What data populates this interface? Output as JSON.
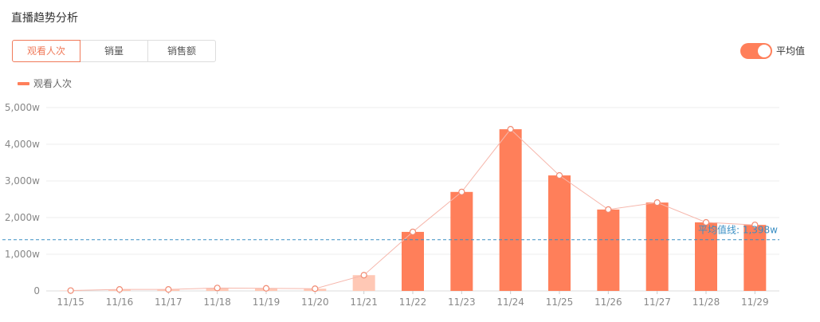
{
  "title": "直播趋势分析",
  "tabs": [
    {
      "label": "观看人次",
      "active": true
    },
    {
      "label": "销量",
      "active": false
    },
    {
      "label": "销售额",
      "active": false
    }
  ],
  "toggle": {
    "label": "平均值",
    "on": true
  },
  "colors": {
    "bar": "#ff7f5a",
    "bar_faded": "#ffc8b5",
    "line": "#f6b7ac",
    "avg_line": "#3a8fc4",
    "accent": "#f07a5a"
  },
  "chart_data": {
    "type": "bar",
    "legend": [
      "观看人次"
    ],
    "legend_position": "top-left",
    "categories": [
      "11/15",
      "11/16",
      "11/17",
      "11/18",
      "11/19",
      "11/20",
      "11/21",
      "11/22",
      "11/23",
      "11/24",
      "11/25",
      "11/26",
      "11/27",
      "11/28",
      "11/29"
    ],
    "series": [
      {
        "name": "观看人次",
        "values": [
          10,
          40,
          40,
          80,
          70,
          60,
          430,
          1610,
          2700,
          4410,
          3150,
          2220,
          2410,
          1870,
          1800
        ]
      }
    ],
    "y_ticks": [
      "0",
      "1,000w",
      "2,000w",
      "3,000w",
      "4,000w",
      "5,000w"
    ],
    "ylim": [
      0,
      5000
    ],
    "grid": true,
    "average": {
      "value": 1398,
      "label": "平均值线: 1,398w"
    }
  }
}
